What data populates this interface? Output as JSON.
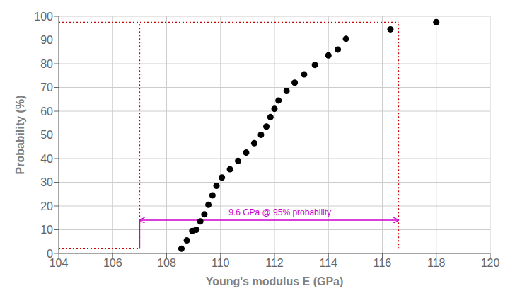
{
  "chart_data": {
    "type": "scatter",
    "x": [
      108.55,
      108.75,
      108.95,
      109.1,
      109.25,
      109.4,
      109.55,
      109.7,
      109.85,
      110.05,
      110.35,
      110.65,
      110.95,
      111.25,
      111.5,
      111.7,
      111.85,
      112.0,
      112.15,
      112.45,
      112.75,
      113.1,
      113.5,
      114.0,
      114.35,
      114.65,
      116.3,
      118.0
    ],
    "values": [
      2.0,
      5.5,
      9.5,
      10.0,
      13.5,
      16.5,
      20.5,
      24.5,
      28.5,
      32.0,
      35.5,
      39.0,
      42.5,
      46.5,
      50.0,
      53.5,
      57.5,
      61.0,
      64.5,
      68.5,
      72.0,
      75.5,
      79.5,
      83.5,
      86.0,
      90.5,
      94.5,
      97.5
    ],
    "color": "#000000",
    "xlim": [
      104,
      120
    ],
    "ylim": [
      0,
      100
    ],
    "xticks": [
      104,
      106,
      108,
      110,
      112,
      114,
      116,
      118,
      120
    ],
    "yticks": [
      0,
      10,
      20,
      30,
      40,
      50,
      60,
      70,
      80,
      90,
      100
    ],
    "xlabel": "Young's modulus E (GPa)",
    "ylabel": "Probability (%)",
    "grid": true,
    "lines": [
      {
        "x": [
          104,
          116.6
        ],
        "y": [
          97.5,
          97.5
        ],
        "color": "#cc0000",
        "line_style": "dotted"
      },
      {
        "x": [
          104,
          107.0
        ],
        "y": [
          2.0,
          2.0
        ],
        "color": "#cc0000",
        "line_style": "dotted"
      },
      {
        "x": [
          107.0,
          107.0
        ],
        "y": [
          2.0,
          97.5
        ],
        "color": "#cc0000",
        "line_style": "dotted"
      },
      {
        "x": [
          116.6,
          116.6
        ],
        "y": [
          2.0,
          97.5
        ],
        "color": "#cc0000",
        "line_style": "dotted"
      },
      {
        "x": [
          107.0,
          107.0
        ],
        "y": [
          2.0,
          14.0
        ],
        "color": "#cc00cc",
        "line_style": "solid"
      }
    ],
    "arrow": {
      "x": [
        107.0,
        116.6
      ],
      "y": [
        14.0,
        14.0
      ],
      "color": "#cc00cc"
    },
    "annotations": [
      {
        "text": "9.6 GPa @ 95% probability",
        "x": 112.2,
        "y": 14.5,
        "color": "#cc00cc"
      }
    ]
  }
}
